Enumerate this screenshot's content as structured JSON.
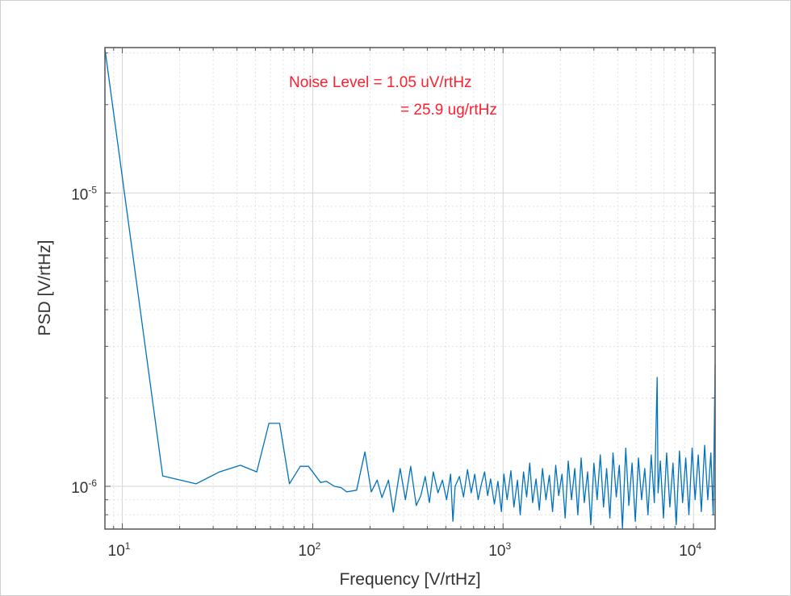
{
  "chart_data": {
    "type": "line",
    "xlabel": "Frequency [V/rtHz]",
    "ylabel": "PSD [V/rtHz]",
    "x_scale": "log",
    "y_scale": "log",
    "xlim": [
      8.1,
      13000
    ],
    "ylim": [
      7.15e-07,
      3.13e-05
    ],
    "grid": true,
    "minor_grid": true,
    "line_color": "#0072BD",
    "annotation_color": "#ff1f2e",
    "x_ticks": [
      {
        "value": 10,
        "base": "10",
        "exp": "1"
      },
      {
        "value": 100,
        "base": "10",
        "exp": "2"
      },
      {
        "value": 1000,
        "base": "10",
        "exp": "3"
      },
      {
        "value": 10000,
        "base": "10",
        "exp": "4"
      }
    ],
    "y_ticks": [
      {
        "value": 1e-06,
        "base": "10",
        "exp": "-6"
      },
      {
        "value": 1e-05,
        "base": "10",
        "exp": "-5"
      }
    ],
    "annotations": [
      "Noise Level = 1.05 uV/rtHz",
      "= 25.9 ug/rtHz"
    ],
    "series": [
      {
        "x": [
          8.1,
          16.3,
          24.4,
          32.4,
          41.7,
          50.8,
          58.9,
          67,
          75.5,
          86,
          95,
          110,
          118,
          130,
          141,
          151,
          170,
          188,
          203,
          218,
          231,
          250,
          265,
          288,
          307,
          327,
          350,
          370,
          390,
          410,
          430,
          455,
          480,
          505,
          530,
          545,
          560,
          590,
          620,
          650,
          680,
          710,
          740,
          770,
          800,
          830,
          860,
          900,
          940,
          980,
          1010,
          1050,
          1100,
          1140,
          1190,
          1230,
          1280,
          1330,
          1380,
          1430,
          1490,
          1550,
          1610,
          1680,
          1750,
          1820,
          1890,
          1960,
          2040,
          2120,
          2200,
          2290,
          2380,
          2470,
          2570,
          2670,
          2780,
          2890,
          3000,
          3120,
          3240,
          3370,
          3500,
          3640,
          3780,
          3930,
          4080,
          4240,
          4410,
          4580,
          4760,
          4950,
          5140,
          5340,
          5550,
          5770,
          6000,
          6230,
          6450,
          6520,
          6700,
          6960,
          7230,
          7520,
          7810,
          8120,
          8440,
          8770,
          9110,
          9470,
          9840,
          10200,
          10600,
          11000,
          11450,
          11900,
          12350,
          12700,
          13000
        ],
        "y": [
          3.1e-05,
          1.085e-06,
          1.02e-06,
          1.12e-06,
          1.18e-06,
          1.12e-06,
          1.64e-06,
          1.64e-06,
          1.02e-06,
          1.17e-06,
          1.17e-06,
          1.03e-06,
          1.04e-06,
          1e-06,
          9.9e-07,
          9.57e-07,
          9.7e-07,
          1.31e-06,
          9.57e-07,
          1.05e-06,
          9.15e-07,
          1.05e-06,
          8.17e-07,
          1.15e-06,
          9e-07,
          1.17e-06,
          8.6e-07,
          9.3e-07,
          1.08e-06,
          8.8e-07,
          1.12e-06,
          9.5e-07,
          1.05e-06,
          9e-07,
          1.1e-06,
          7.6e-07,
          1e-06,
          1.08e-06,
          9.2e-07,
          1.14e-06,
          9.5e-07,
          1.1e-06,
          9e-07,
          1.02e-06,
          1.12e-06,
          9.3e-07,
          1.06e-06,
          8.7e-07,
          1.04e-06,
          8.2e-07,
          1.1e-06,
          9e-07,
          1.13e-06,
          8.5e-07,
          1.05e-06,
          8e-07,
          1.12e-06,
          9.2e-07,
          1.2e-06,
          8.8e-07,
          1.06e-06,
          8.3e-07,
          1.15e-06,
          9e-07,
          1.09e-06,
          8.2e-07,
          1.18e-06,
          9.3e-07,
          1.1e-06,
          7.8e-07,
          1.22e-06,
          9e-07,
          1.15e-06,
          8e-07,
          1.25e-06,
          8.8e-07,
          1.12e-06,
          7.4e-07,
          1.2e-06,
          9e-07,
          1.28e-06,
          8.5e-07,
          1.15e-06,
          7.8e-07,
          1.3e-06,
          9.2e-07,
          1.18e-06,
          7.2e-07,
          1.35e-06,
          8.6e-07,
          1.2e-06,
          7.6e-07,
          1.25e-06,
          9e-07,
          1.15e-06,
          8e-07,
          1.28e-06,
          8.8e-07,
          2.35e-06,
          9.5e-07,
          1.22e-06,
          7.8e-07,
          1.3e-06,
          8.5e-07,
          1.2e-06,
          7.4e-07,
          1.32e-06,
          8.8e-07,
          1.25e-06,
          8e-07,
          1.35e-06,
          9e-07,
          1.28e-06,
          8.2e-07,
          1.38e-06,
          9e-07,
          1.3e-06,
          8e-07,
          2.6e-06
        ]
      }
    ]
  }
}
